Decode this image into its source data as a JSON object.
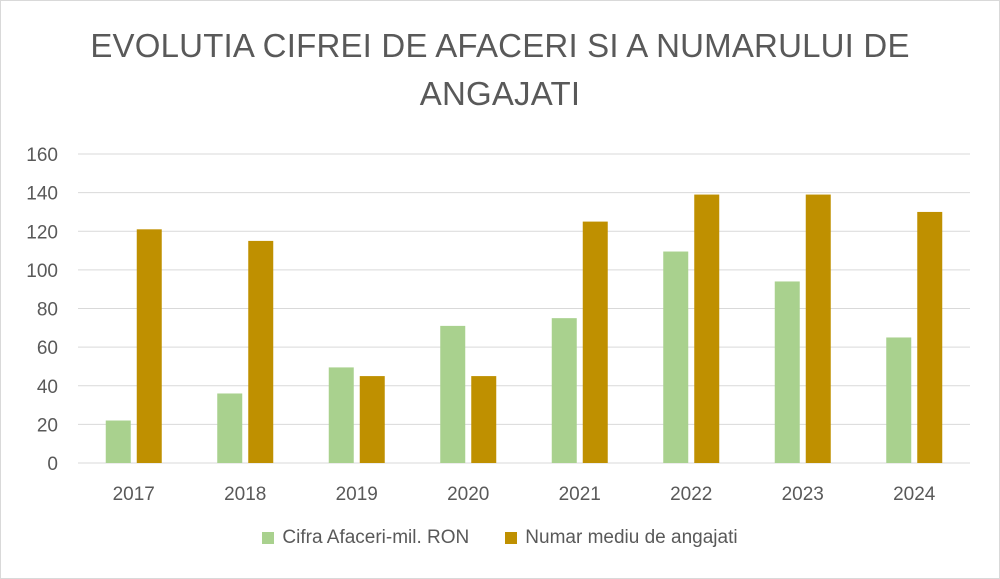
{
  "chart_data": {
    "type": "bar",
    "title_lines": [
      "EVOLUTIA CIFREI DE AFACERI SI A NUMARULUI DE",
      "ANGAJATI"
    ],
    "categories": [
      "2017",
      "2018",
      "2019",
      "2020",
      "2021",
      "2022",
      "2023",
      "2024"
    ],
    "series": [
      {
        "name": "Cifra Afaceri-mil. RON",
        "color": "#a9d18e",
        "values": [
          22,
          36,
          49.5,
          71,
          75,
          109.5,
          94,
          65
        ]
      },
      {
        "name": "Numar mediu de angajati",
        "color": "#bf9000",
        "values": [
          121,
          115,
          45,
          45,
          125,
          139,
          139,
          130
        ]
      }
    ],
    "ylim": [
      0,
      160
    ],
    "yticks": [
      0,
      20,
      40,
      60,
      80,
      100,
      120,
      140,
      160
    ],
    "grid": true,
    "legend_position": "bottom"
  }
}
